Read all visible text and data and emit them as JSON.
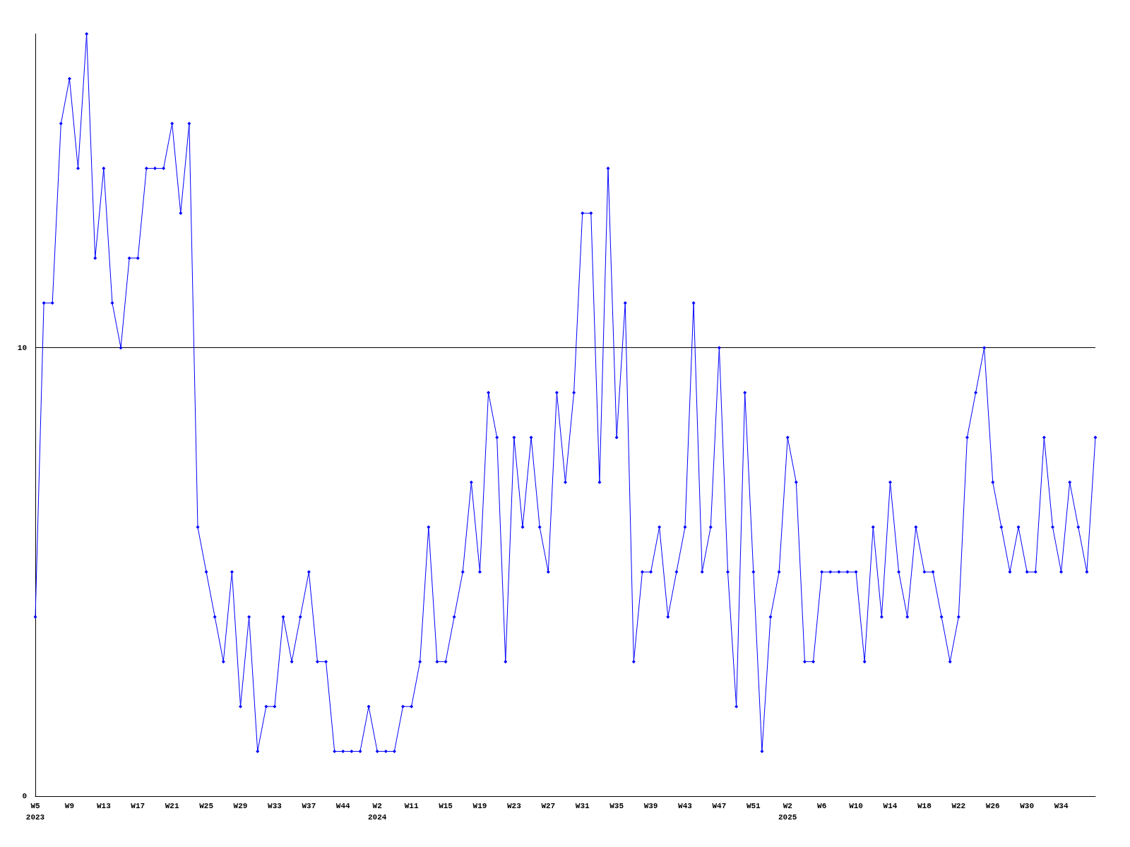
{
  "chart_data": {
    "type": "line",
    "categories": [
      "W5\n2023",
      null,
      null,
      null,
      "W9",
      null,
      null,
      null,
      "W13",
      null,
      null,
      null,
      "W17",
      null,
      null,
      null,
      "W21",
      null,
      null,
      null,
      "W25",
      null,
      null,
      null,
      "W29",
      null,
      null,
      null,
      "W33",
      null,
      null,
      null,
      "W37",
      null,
      null,
      null,
      "W44",
      null,
      null,
      null,
      "W2\n2024",
      null,
      null,
      null,
      "W11",
      null,
      null,
      null,
      "W15",
      null,
      null,
      null,
      "W19",
      null,
      null,
      null,
      "W23",
      null,
      null,
      null,
      "W27",
      null,
      null,
      null,
      "W31",
      null,
      null,
      null,
      "W35",
      null,
      null,
      null,
      "W39",
      null,
      null,
      null,
      "W43",
      null,
      null,
      null,
      "W47",
      null,
      null,
      null,
      "W51",
      null,
      null,
      null,
      "W2\n2025",
      null,
      null,
      null,
      "W6",
      null,
      null,
      null,
      "W10",
      null,
      null,
      null,
      "W14",
      null,
      null,
      null,
      "W18",
      null,
      null,
      null,
      "W22",
      null,
      null,
      null,
      "W26",
      null,
      null,
      null,
      "W30",
      null,
      null,
      null,
      "W34",
      null,
      null,
      null,
      null
    ],
    "series": [
      {
        "color": "#0000ff",
        "values": [
          4,
          11,
          11,
          15,
          16,
          14,
          17,
          12,
          14,
          11,
          10,
          12,
          12,
          14,
          14,
          14,
          15,
          13,
          15,
          6,
          5,
          4,
          3,
          5,
          2,
          4,
          1,
          2,
          2,
          4,
          3,
          4,
          5,
          3,
          3,
          1,
          1,
          1,
          1,
          2,
          1,
          1,
          1,
          2,
          2,
          3,
          6,
          3,
          3,
          4,
          5,
          7,
          5,
          9,
          8,
          3,
          8,
          6,
          8,
          6,
          5,
          9,
          7,
          9,
          13,
          13,
          7,
          14,
          8,
          11,
          3,
          5,
          5,
          6,
          4,
          5,
          6,
          11,
          5,
          6,
          10,
          5,
          2,
          9,
          5,
          1,
          4,
          5,
          8,
          7,
          3,
          3,
          5,
          5,
          5,
          5,
          5,
          3,
          6,
          4,
          7,
          5,
          4,
          6,
          5,
          5,
          4,
          3,
          4,
          8,
          9,
          10,
          7,
          6,
          5,
          6,
          5,
          5,
          8,
          6,
          5,
          7,
          6,
          5,
          8
        ]
      }
    ],
    "ylim": [
      0,
      17
    ],
    "yticks": [
      0,
      10
    ],
    "grid": "y",
    "marker": "diamond",
    "line_style": "solid"
  }
}
